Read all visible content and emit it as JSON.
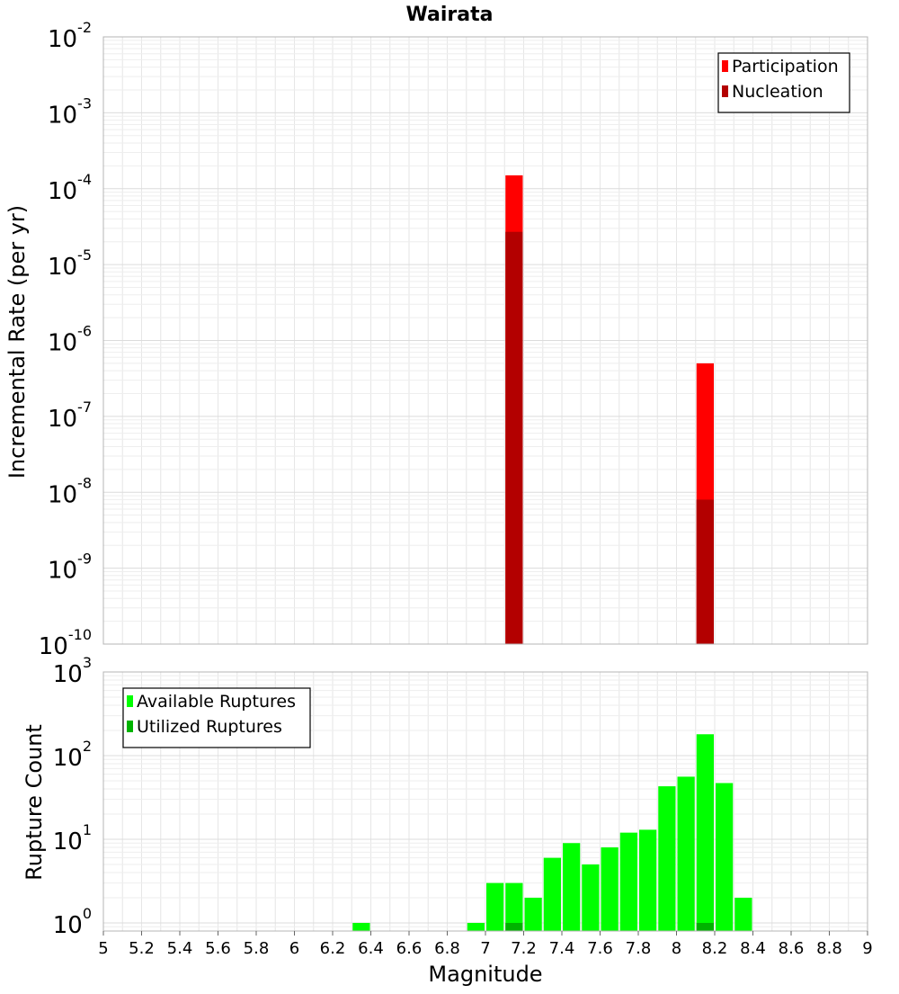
{
  "chart_data": [
    {
      "type": "bar",
      "title": "Wairata",
      "ylabel": "Incremental Rate (per yr)",
      "yscale": "log",
      "ylim": [
        1e-10,
        0.01
      ],
      "xlim": [
        5,
        9
      ],
      "bin_width": 0.1,
      "grid": true,
      "legend_position": "top-right",
      "y_ticks": [
        {
          "base": "10",
          "exp": "-10"
        },
        {
          "base": "10",
          "exp": "-9"
        },
        {
          "base": "10",
          "exp": "-8"
        },
        {
          "base": "10",
          "exp": "-7"
        },
        {
          "base": "10",
          "exp": "-6"
        },
        {
          "base": "10",
          "exp": "-5"
        },
        {
          "base": "10",
          "exp": "-4"
        },
        {
          "base": "10",
          "exp": "-3"
        },
        {
          "base": "10",
          "exp": "-2"
        }
      ],
      "series": [
        {
          "name": "Participation",
          "color": "#ff0000",
          "x": [
            7.15,
            8.15
          ],
          "values": [
            0.00015,
            5e-07
          ]
        },
        {
          "name": "Nucleation",
          "color": "#b30000",
          "x": [
            7.15,
            8.15
          ],
          "values": [
            2.7e-05,
            8e-09
          ]
        }
      ]
    },
    {
      "type": "bar",
      "title": "",
      "xlabel": "Magnitude",
      "ylabel": "Rupture Count",
      "yscale": "log",
      "ylim": [
        0.8,
        1000
      ],
      "xlim": [
        5,
        9
      ],
      "bin_width": 0.1,
      "grid": true,
      "legend_position": "top-left",
      "x_ticks": [
        "5",
        "5.2",
        "5.4",
        "5.6",
        "5.8",
        "6",
        "6.2",
        "6.4",
        "6.6",
        "6.8",
        "7",
        "7.2",
        "7.4",
        "7.6",
        "7.8",
        "8",
        "8.2",
        "8.4",
        "8.6",
        "8.8",
        "9"
      ],
      "y_ticks": [
        {
          "base": "10",
          "exp": "0"
        },
        {
          "base": "10",
          "exp": "1"
        },
        {
          "base": "10",
          "exp": "2"
        },
        {
          "base": "10",
          "exp": "3"
        }
      ],
      "series": [
        {
          "name": "Available Ruptures",
          "color": "#00ff00",
          "x": [
            6.35,
            6.95,
            7.05,
            7.15,
            7.25,
            7.35,
            7.45,
            7.55,
            7.65,
            7.75,
            7.85,
            7.95,
            8.05,
            8.15,
            8.25,
            8.35
          ],
          "values": [
            1,
            1,
            3,
            3,
            2,
            6,
            9,
            5,
            8,
            12,
            13,
            43,
            56,
            180,
            47,
            2
          ]
        },
        {
          "name": "Utilized Ruptures",
          "color": "#00b300",
          "x": [
            7.15,
            8.15
          ],
          "values": [
            1,
            1
          ]
        }
      ]
    }
  ]
}
